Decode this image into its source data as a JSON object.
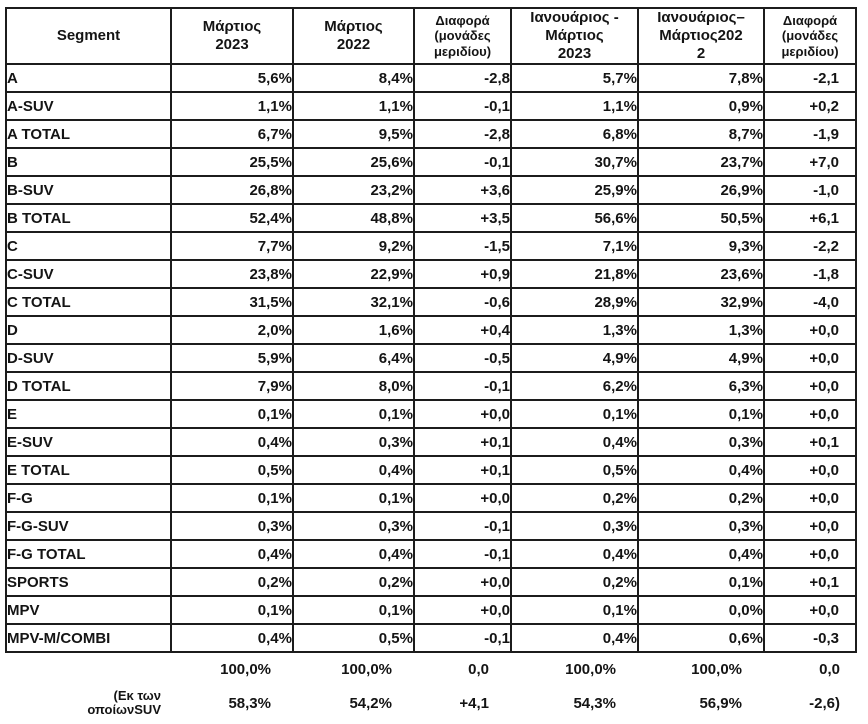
{
  "table": {
    "columns": [
      {
        "id": "segment",
        "label": "Segment",
        "small": false
      },
      {
        "id": "mar-2023",
        "label": "Μάρτιος\n2023",
        "small": false
      },
      {
        "id": "mar-2022",
        "label": "Μάρτιος\n2022",
        "small": false
      },
      {
        "id": "diff-month",
        "label": "Διαφορά\n(μονάδες\nμεριδίου)",
        "small": true
      },
      {
        "id": "jan-mar-2023",
        "label": "Ιανουάριος -\nΜάρτιος\n2023",
        "small": false
      },
      {
        "id": "jan-mar-2022",
        "label": "Ιανουάριος–\nΜάρτιος202\n2",
        "small": false
      },
      {
        "id": "diff-ytd",
        "label": "Διαφορά\n(μονάδες\nμεριδίου)",
        "small": true
      }
    ],
    "rows": [
      [
        "A",
        "5,6%",
        "8,4%",
        "-2,8",
        "5,7%",
        "7,8%",
        "-2,1"
      ],
      [
        "A-SUV",
        "1,1%",
        "1,1%",
        "-0,1",
        "1,1%",
        "0,9%",
        "+0,2"
      ],
      [
        "A TOTAL",
        "6,7%",
        "9,5%",
        "-2,8",
        "6,8%",
        "8,7%",
        "-1,9"
      ],
      [
        "B",
        "25,5%",
        "25,6%",
        "-0,1",
        "30,7%",
        "23,7%",
        "+7,0"
      ],
      [
        "B-SUV",
        "26,8%",
        "23,2%",
        "+3,6",
        "25,9%",
        "26,9%",
        "-1,0"
      ],
      [
        "B TOTAL",
        "52,4%",
        "48,8%",
        "+3,5",
        "56,6%",
        "50,5%",
        "+6,1"
      ],
      [
        "C",
        "7,7%",
        "9,2%",
        "-1,5",
        "7,1%",
        "9,3%",
        "-2,2"
      ],
      [
        "C-SUV",
        "23,8%",
        "22,9%",
        "+0,9",
        "21,8%",
        "23,6%",
        "-1,8"
      ],
      [
        "C TOTAL",
        "31,5%",
        "32,1%",
        "-0,6",
        "28,9%",
        "32,9%",
        "-4,0"
      ],
      [
        "D",
        "2,0%",
        "1,6%",
        "+0,4",
        "1,3%",
        "1,3%",
        "+0,0"
      ],
      [
        "D-SUV",
        "5,9%",
        "6,4%",
        "-0,5",
        "4,9%",
        "4,9%",
        "+0,0"
      ],
      [
        "D TOTAL",
        "7,9%",
        "8,0%",
        "-0,1",
        "6,2%",
        "6,3%",
        "+0,0"
      ],
      [
        "E",
        "0,1%",
        "0,1%",
        "+0,0",
        "0,1%",
        "0,1%",
        "+0,0"
      ],
      [
        "E-SUV",
        "0,4%",
        "0,3%",
        "+0,1",
        "0,4%",
        "0,3%",
        "+0,1"
      ],
      [
        "E TOTAL",
        "0,5%",
        "0,4%",
        "+0,1",
        "0,5%",
        "0,4%",
        "+0,0"
      ],
      [
        "F-G",
        "0,1%",
        "0,1%",
        "+0,0",
        "0,2%",
        "0,2%",
        "+0,0"
      ],
      [
        "F-G-SUV",
        "0,3%",
        "0,3%",
        "-0,1",
        "0,3%",
        "0,3%",
        "+0,0"
      ],
      [
        "F-G TOTAL",
        "0,4%",
        "0,4%",
        "-0,1",
        "0,4%",
        "0,4%",
        "+0,0"
      ],
      [
        "SPORTS",
        "0,2%",
        "0,2%",
        "+0,0",
        "0,2%",
        "0,1%",
        "+0,1"
      ],
      [
        "MPV",
        "0,1%",
        "0,1%",
        "+0,0",
        "0,1%",
        "0,0%",
        "+0,0"
      ],
      [
        "MPV-M/COMBI",
        "0,4%",
        "0,5%",
        "-0,1",
        "0,4%",
        "0,6%",
        "-0,3"
      ]
    ],
    "footer_rows": [
      [
        "",
        "100,0%",
        "100,0%",
        "0,0",
        "100,0%",
        "100,0%",
        "0,0"
      ],
      [
        "(Εκ των\nοποίωνSUV",
        "58,3%",
        "54,2%",
        "+4,1",
        "54,3%",
        "56,9%",
        "-2,6)"
      ]
    ]
  }
}
